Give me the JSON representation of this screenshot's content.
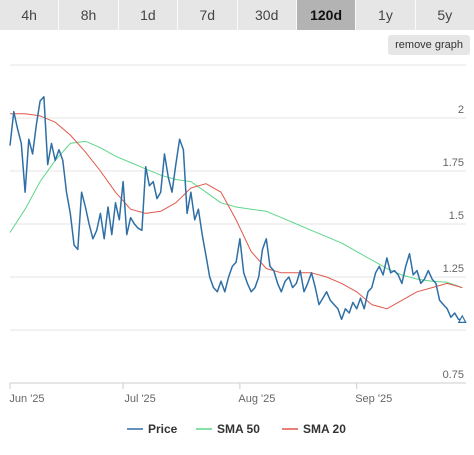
{
  "timeframes": {
    "items": [
      "4h",
      "8h",
      "1d",
      "7d",
      "30d",
      "120d",
      "1y",
      "5y"
    ],
    "active": "120d"
  },
  "remove_graph_label": "remove graph",
  "colors": {
    "price": "#2f6fa5",
    "sma50": "#5ed68a",
    "sma20": "#e0584c",
    "grid": "#e6e6e6",
    "axis_text": "#666666",
    "tab_bg": "#e6e6e6",
    "tab_active_bg": "#b3b3b3"
  },
  "chart_data": {
    "type": "line",
    "grid": true,
    "legend_placement": "bottom-center",
    "ylim": [
      0.75,
      2.25
    ],
    "y_ticks": [
      2,
      1.75,
      1.5,
      1.25,
      0.75
    ],
    "y_tick_labels": [
      "2",
      "1.75",
      "1.5",
      "1.25",
      "0.75"
    ],
    "x_ticks": [
      0,
      30,
      61,
      92
    ],
    "x_tick_labels": [
      "Jun '25",
      "Jul '25",
      "Aug '25",
      "Sep '25"
    ],
    "xlim": [
      0,
      121
    ],
    "series": [
      {
        "name": "Price",
        "x": [
          0,
          1,
          2,
          3,
          4,
          5,
          6,
          7,
          8,
          9,
          10,
          11,
          12,
          13,
          14,
          15,
          16,
          17,
          18,
          19,
          20,
          21,
          22,
          23,
          24,
          25,
          26,
          27,
          28,
          29,
          30,
          31,
          32,
          33,
          34,
          35,
          36,
          37,
          38,
          39,
          40,
          41,
          42,
          43,
          44,
          45,
          46,
          47,
          48,
          49,
          50,
          51,
          52,
          53,
          54,
          55,
          56,
          57,
          58,
          59,
          60,
          61,
          62,
          63,
          64,
          65,
          66,
          67,
          68,
          69,
          70,
          71,
          72,
          73,
          74,
          75,
          76,
          77,
          78,
          79,
          80,
          81,
          82,
          83,
          84,
          85,
          86,
          87,
          88,
          89,
          90,
          91,
          92,
          93,
          94,
          95,
          96,
          97,
          98,
          99,
          100,
          101,
          102,
          103,
          104,
          105,
          106,
          107,
          108,
          109,
          110,
          111,
          112,
          113,
          114,
          115,
          116,
          117,
          118,
          119,
          120
        ],
        "values": [
          1.87,
          2.03,
          1.95,
          1.88,
          1.65,
          1.9,
          1.83,
          1.97,
          2.08,
          2.1,
          1.78,
          1.88,
          1.8,
          1.85,
          1.8,
          1.65,
          1.55,
          1.4,
          1.38,
          1.65,
          1.58,
          1.5,
          1.43,
          1.47,
          1.55,
          1.43,
          1.58,
          1.45,
          1.6,
          1.52,
          1.7,
          1.45,
          1.53,
          1.5,
          1.48,
          1.47,
          1.77,
          1.68,
          1.7,
          1.62,
          1.65,
          1.83,
          1.72,
          1.65,
          1.78,
          1.9,
          1.85,
          1.55,
          1.65,
          1.52,
          1.57,
          1.45,
          1.35,
          1.25,
          1.2,
          1.18,
          1.23,
          1.18,
          1.25,
          1.3,
          1.32,
          1.43,
          1.27,
          1.22,
          1.18,
          1.2,
          1.25,
          1.38,
          1.43,
          1.3,
          1.28,
          1.22,
          1.18,
          1.23,
          1.25,
          1.2,
          1.22,
          1.28,
          1.18,
          1.22,
          1.27,
          1.2,
          1.12,
          1.15,
          1.18,
          1.14,
          1.12,
          1.1,
          1.05,
          1.1,
          1.08,
          1.13,
          1.1,
          1.15,
          1.1,
          1.18,
          1.2,
          1.27,
          1.3,
          1.26,
          1.34,
          1.27,
          1.28,
          1.26,
          1.22,
          1.3,
          1.36,
          1.26,
          1.28,
          1.22,
          1.24,
          1.28,
          1.24,
          1.22,
          1.14,
          1.12,
          1.1,
          1.06,
          1.08,
          1.05,
          1.05
        ]
      },
      {
        "name": "SMA 50",
        "x": [
          0,
          4,
          8,
          12,
          16,
          20,
          24,
          28,
          32,
          36,
          40,
          44,
          48,
          52,
          56,
          60,
          64,
          68,
          72,
          76,
          80,
          84,
          88,
          92,
          96,
          100,
          104,
          108,
          112,
          116,
          120
        ],
        "values": [
          1.46,
          1.57,
          1.7,
          1.8,
          1.88,
          1.89,
          1.86,
          1.82,
          1.79,
          1.76,
          1.73,
          1.71,
          1.7,
          1.65,
          1.6,
          1.58,
          1.57,
          1.56,
          1.53,
          1.5,
          1.47,
          1.44,
          1.41,
          1.37,
          1.33,
          1.29,
          1.26,
          1.24,
          1.23,
          1.225,
          1.2
        ]
      },
      {
        "name": "SMA 20",
        "x": [
          0,
          4,
          8,
          12,
          16,
          20,
          24,
          28,
          32,
          36,
          40,
          44,
          48,
          52,
          56,
          60,
          64,
          68,
          72,
          76,
          80,
          84,
          88,
          92,
          96,
          100,
          104,
          108,
          112,
          116,
          120
        ],
        "values": [
          2.02,
          2.02,
          2.01,
          1.98,
          1.92,
          1.84,
          1.75,
          1.65,
          1.57,
          1.55,
          1.56,
          1.6,
          1.67,
          1.69,
          1.65,
          1.52,
          1.37,
          1.29,
          1.27,
          1.27,
          1.27,
          1.25,
          1.22,
          1.18,
          1.12,
          1.1,
          1.14,
          1.18,
          1.2,
          1.22,
          1.2
        ]
      }
    ]
  }
}
